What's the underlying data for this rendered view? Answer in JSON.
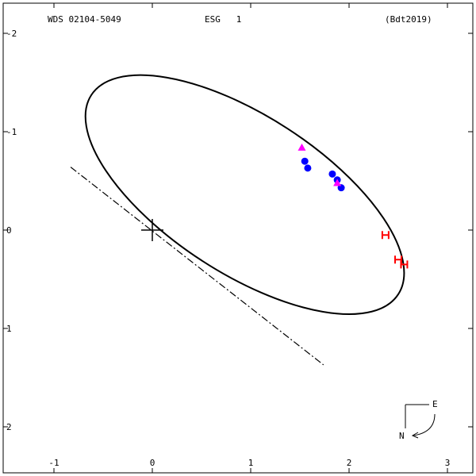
{
  "header": {
    "wds": "WDS 02104-5049",
    "disc": "ESG   1",
    "ref": "(Bdt2019)"
  },
  "compass": {
    "east": "E",
    "north": "N"
  },
  "chart_data": {
    "type": "scatter",
    "title": "WDS 02104-5049   ESG   1   (Bdt2019)",
    "xlabel": "",
    "ylabel": "",
    "xlim": [
      -1.5,
      3.3
    ],
    "ylim": [
      -2.5,
      2.3
    ],
    "grid": false,
    "x_ticks": [
      -1,
      0,
      1,
      2,
      3
    ],
    "y_ticks": [
      -2,
      -1,
      0,
      1,
      2
    ],
    "y_tick_labels": [
      "2",
      "1",
      "0",
      "-1",
      "-2"
    ],
    "orbit": {
      "type": "ellipse",
      "center": [
        0.94,
        0.36
      ],
      "semi_axes": [
        1.86,
        0.8
      ],
      "rotation_deg": -33
    },
    "line_of_nodes": {
      "from": [
        -0.83,
        0.64
      ],
      "to": [
        1.74,
        -1.37
      ]
    },
    "primary_marker": [
      0.0,
      0.0
    ],
    "series": [
      {
        "marker": "circle",
        "color": "#0000ff",
        "points": [
          [
            1.55,
            0.7
          ],
          [
            1.58,
            0.63
          ],
          [
            1.83,
            0.57
          ],
          [
            1.88,
            0.51
          ],
          [
            1.92,
            0.43
          ]
        ]
      },
      {
        "marker": "triangle",
        "color": "#ff00ff",
        "points": [
          [
            1.52,
            0.84
          ],
          [
            1.88,
            0.48
          ]
        ]
      },
      {
        "marker": "H",
        "color": "#ff0000",
        "points": [
          [
            2.37,
            -0.05
          ],
          [
            2.5,
            -0.3
          ],
          [
            2.56,
            -0.35
          ]
        ]
      }
    ]
  }
}
